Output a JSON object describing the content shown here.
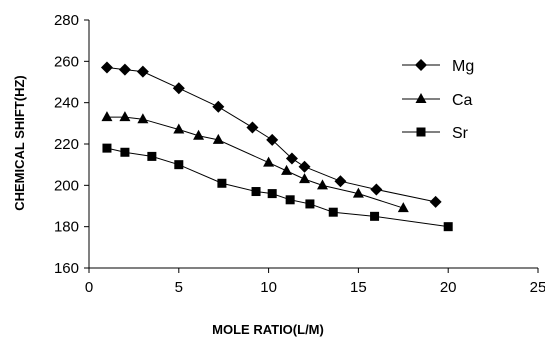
{
  "chart_data": {
    "type": "line",
    "xlabel": "MOLE RATIO(L/M)",
    "ylabel": "CHEMICAL SHIFT(HZ)",
    "xlim": [
      0,
      25
    ],
    "ylim": [
      160,
      280
    ],
    "xticks": [
      0,
      5,
      10,
      15,
      20,
      25
    ],
    "yticks": [
      160,
      180,
      200,
      220,
      240,
      260,
      280
    ],
    "grid": false,
    "legend": "right",
    "series": [
      {
        "name": "Mg",
        "marker": "diamond",
        "color": "#000000",
        "x": [
          1,
          2,
          3,
          5,
          7.2,
          9.1,
          10.2,
          11.3,
          12,
          14,
          16,
          19.3
        ],
        "y": [
          257,
          256,
          255,
          247,
          238,
          228,
          222,
          213,
          209,
          202,
          198,
          192
        ]
      },
      {
        "name": "Ca",
        "marker": "triangle",
        "color": "#000000",
        "x": [
          1,
          2,
          3,
          5,
          6.1,
          7.2,
          10,
          11,
          12,
          13,
          15,
          17.5
        ],
        "y": [
          233,
          233,
          232,
          227,
          224,
          222,
          211,
          207,
          203,
          200,
          196,
          189
        ]
      },
      {
        "name": "Sr",
        "marker": "square",
        "color": "#000000",
        "x": [
          1,
          2,
          3.5,
          5,
          7.4,
          9.3,
          10.2,
          11.2,
          12.3,
          13.6,
          15.9,
          20
        ],
        "y": [
          218,
          216,
          214,
          210,
          201,
          197,
          196,
          193,
          191,
          187,
          185,
          180
        ]
      }
    ]
  }
}
